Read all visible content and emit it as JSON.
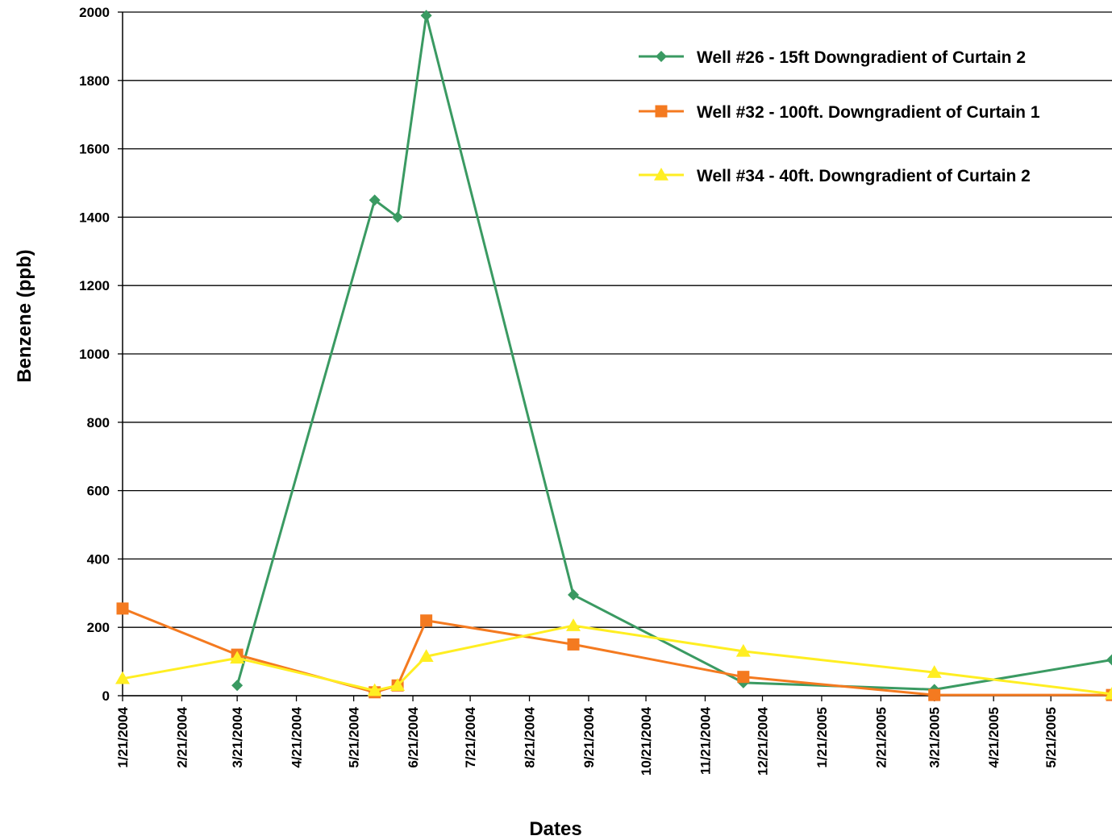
{
  "chart_data": {
    "type": "line",
    "title": "",
    "xlabel": "Dates",
    "ylabel": "Benzene (ppb)",
    "ylim": [
      0,
      2000
    ],
    "yticks": [
      0,
      200,
      400,
      600,
      800,
      1000,
      1200,
      1400,
      1600,
      1800,
      2000
    ],
    "xtick_labels": [
      "1/21/2004",
      "2/21/2004",
      "3/21/2004",
      "4/21/2004",
      "5/21/2004",
      "6/21/2004",
      "7/21/2004",
      "8/21/2004",
      "9/21/2004",
      "10/21/2004",
      "11/21/2004",
      "12/21/2004",
      "1/21/2005",
      "2/21/2005",
      "3/21/2005",
      "4/21/2005",
      "5/21/2005"
    ],
    "xlim": [
      "2004-01-21",
      "2005-06-22"
    ],
    "grid": "horizontal",
    "legend_position": "top-right",
    "series": [
      {
        "name": "Well #26 - 15ft Downgradient of Curtain 2",
        "color": "#3a9a62",
        "marker": "diamond",
        "points": [
          {
            "x": "2004-03-21",
            "y": 30
          },
          {
            "x": "2004-06-01",
            "y": 1450
          },
          {
            "x": "2004-06-13",
            "y": 1400
          },
          {
            "x": "2004-06-28",
            "y": 1990
          },
          {
            "x": "2004-09-13",
            "y": 295
          },
          {
            "x": "2004-12-11",
            "y": 38
          },
          {
            "x": "2005-03-21",
            "y": 18
          },
          {
            "x": "2005-06-22",
            "y": 105
          }
        ]
      },
      {
        "name": "Well #32 - 100ft. Downgradient of Curtain 1",
        "color": "#f47a20",
        "marker": "square",
        "points": [
          {
            "x": "2004-01-21",
            "y": 255
          },
          {
            "x": "2004-03-21",
            "y": 120
          },
          {
            "x": "2004-06-01",
            "y": 10
          },
          {
            "x": "2004-06-13",
            "y": 30
          },
          {
            "x": "2004-06-28",
            "y": 220
          },
          {
            "x": "2004-09-13",
            "y": 150
          },
          {
            "x": "2004-12-11",
            "y": 55
          },
          {
            "x": "2005-03-21",
            "y": 2
          },
          {
            "x": "2005-06-22",
            "y": 2
          }
        ]
      },
      {
        "name": "Well #34 - 40ft. Downgradient of Curtain 2",
        "color": "#ffee22",
        "marker": "triangle",
        "points": [
          {
            "x": "2004-01-21",
            "y": 50
          },
          {
            "x": "2004-03-21",
            "y": 110
          },
          {
            "x": "2004-06-01",
            "y": 15
          },
          {
            "x": "2004-06-13",
            "y": 30
          },
          {
            "x": "2004-06-28",
            "y": 115
          },
          {
            "x": "2004-09-13",
            "y": 205
          },
          {
            "x": "2004-12-11",
            "y": 130
          },
          {
            "x": "2005-03-21",
            "y": 68
          },
          {
            "x": "2005-06-22",
            "y": 5
          }
        ]
      }
    ]
  }
}
